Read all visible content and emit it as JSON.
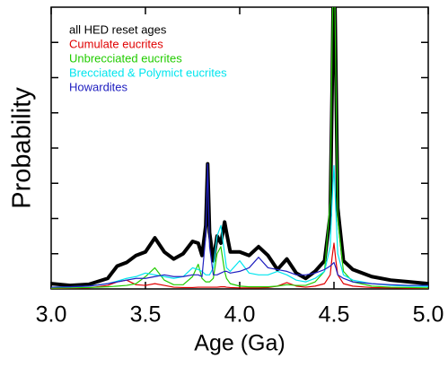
{
  "chart_data": {
    "type": "line",
    "xlabel": "Age (Ga)",
    "ylabel": "Probability",
    "xlim": [
      3,
      5
    ],
    "ylim": [
      0,
      8
    ],
    "xticks": [
      {
        "value": 3,
        "label": "3.0"
      },
      3.5,
      {
        "value": 4,
        "label": "4.0"
      },
      4.5,
      {
        "value": 5,
        "label": "5.0"
      }
    ],
    "yticks": [
      1,
      2,
      3,
      4,
      5,
      6,
      7
    ],
    "x": [
      3.0,
      3.1,
      3.2,
      3.3,
      3.35,
      3.4,
      3.45,
      3.5,
      3.55,
      3.6,
      3.65,
      3.7,
      3.75,
      3.78,
      3.8,
      3.82,
      3.83,
      3.84,
      3.86,
      3.88,
      3.9,
      3.92,
      3.93,
      3.95,
      4.0,
      4.05,
      4.1,
      4.15,
      4.2,
      4.25,
      4.3,
      4.35,
      4.4,
      4.45,
      4.48,
      4.49,
      4.5,
      4.51,
      4.52,
      4.55,
      4.6,
      4.7,
      4.8,
      4.9,
      5.0
    ],
    "series": [
      {
        "name": "all HED reset ages",
        "color": "#000000",
        "width": 4,
        "values": [
          0.15,
          0.1,
          0.13,
          0.3,
          0.65,
          0.75,
          0.95,
          1.05,
          1.45,
          1.05,
          0.85,
          1.0,
          1.35,
          1.3,
          0.95,
          1.8,
          3.55,
          1.6,
          0.8,
          1.5,
          1.3,
          1.9,
          1.6,
          1.05,
          1.05,
          0.95,
          1.2,
          0.95,
          0.55,
          0.85,
          0.45,
          0.3,
          0.5,
          0.8,
          2.1,
          5.6,
          10,
          6.2,
          2.3,
          0.8,
          0.55,
          0.35,
          0.25,
          0.2,
          0.15
        ]
      },
      {
        "name": "Cumulate eucrites",
        "color": "#e00000",
        "width": 1.2,
        "values": [
          0.01,
          0.02,
          0.03,
          0.1,
          0.2,
          0.25,
          0.12,
          0.1,
          0.15,
          0.1,
          0.05,
          0.04,
          0.04,
          0.05,
          0.05,
          0.05,
          0.05,
          0.05,
          0.05,
          0.05,
          0.06,
          0.06,
          0.05,
          0.04,
          0.03,
          0.03,
          0.03,
          0.04,
          0.08,
          0.18,
          0.08,
          0.05,
          0.08,
          0.15,
          0.4,
          0.9,
          1.3,
          0.8,
          0.4,
          0.15,
          0.08,
          0.04,
          0.03,
          0.02,
          0.02
        ]
      },
      {
        "name": "Unbrecciated eucrites",
        "color": "#22cc00",
        "width": 1.2,
        "values": [
          0.02,
          0.03,
          0.04,
          0.06,
          0.08,
          0.1,
          0.15,
          0.35,
          0.6,
          0.25,
          0.12,
          0.12,
          0.35,
          0.7,
          0.3,
          0.2,
          0.2,
          0.2,
          0.3,
          1.0,
          1.2,
          0.5,
          0.3,
          0.15,
          0.08,
          0.06,
          0.06,
          0.06,
          0.08,
          0.12,
          0.1,
          0.1,
          0.2,
          0.5,
          2.5,
          7,
          10,
          6,
          2,
          0.5,
          0.2,
          0.08,
          0.05,
          0.04,
          0.03
        ]
      },
      {
        "name": "Brecciated & Polymict eucrites",
        "color": "#00e5ee",
        "width": 1.2,
        "values": [
          0.05,
          0.06,
          0.08,
          0.15,
          0.22,
          0.3,
          0.35,
          0.45,
          0.4,
          0.35,
          0.3,
          0.35,
          0.6,
          0.55,
          0.5,
          0.4,
          0.4,
          0.4,
          0.6,
          1.5,
          1.8,
          1.0,
          0.6,
          0.5,
          0.8,
          0.45,
          0.4,
          0.4,
          0.5,
          0.4,
          0.25,
          0.2,
          0.3,
          0.5,
          1.2,
          2.5,
          3.5,
          2.2,
          1.0,
          0.4,
          0.25,
          0.15,
          0.1,
          0.08,
          0.07
        ]
      },
      {
        "name": "Howardites",
        "color": "#2020c0",
        "width": 1.2,
        "values": [
          0.05,
          0.06,
          0.08,
          0.15,
          0.2,
          0.25,
          0.3,
          0.3,
          0.35,
          0.4,
          0.35,
          0.35,
          0.4,
          0.4,
          0.35,
          1.5,
          3.55,
          1.2,
          0.4,
          0.4,
          0.45,
          0.5,
          0.5,
          0.45,
          0.5,
          0.6,
          0.9,
          0.6,
          0.55,
          0.5,
          0.4,
          0.4,
          0.45,
          0.55,
          0.65,
          0.7,
          0.75,
          0.6,
          0.4,
          0.3,
          0.2,
          0.15,
          0.12,
          0.1,
          0.1
        ]
      }
    ]
  }
}
